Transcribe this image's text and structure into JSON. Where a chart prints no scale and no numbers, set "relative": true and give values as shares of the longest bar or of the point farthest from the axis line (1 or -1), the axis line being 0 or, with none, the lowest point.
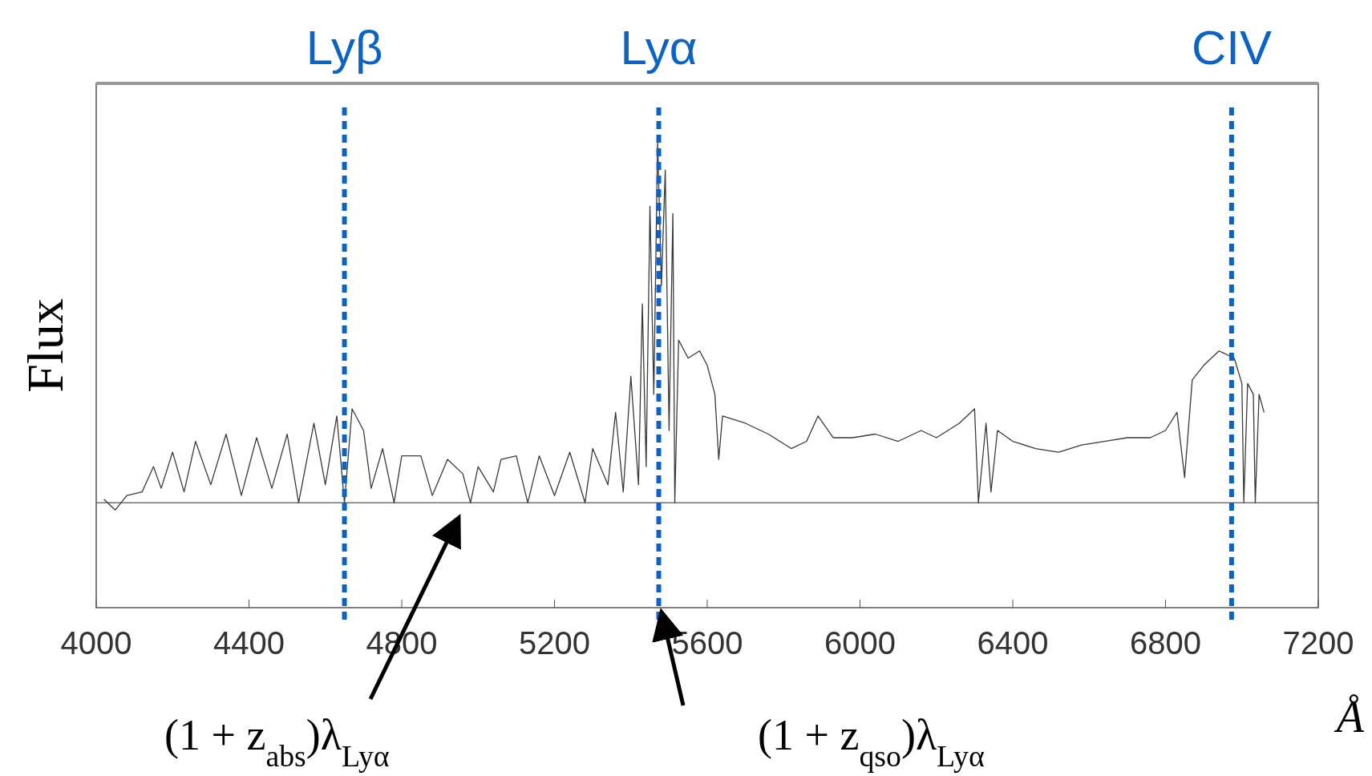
{
  "chart_data": {
    "type": "line",
    "relative": true,
    "xlabel": "Å",
    "ylabel": "Flux",
    "xlim": [
      4000,
      7200
    ],
    "xticks": [
      4000,
      4400,
      4800,
      5200,
      5600,
      6000,
      6400,
      6800,
      7200
    ],
    "grid": false,
    "line_style": "solid",
    "series": [
      {
        "color": "#3a3a3a",
        "x": [
          4020,
          4050,
          4080,
          4120,
          4150,
          4170,
          4200,
          4230,
          4260,
          4300,
          4340,
          4380,
          4420,
          4460,
          4500,
          4530,
          4570,
          4600,
          4630,
          4650,
          4670,
          4700,
          4720,
          4750,
          4780,
          4800,
          4850,
          4880,
          4920,
          4960,
          4980,
          5000,
          5040,
          5060,
          5100,
          5130,
          5160,
          5200,
          5240,
          5280,
          5300,
          5340,
          5360,
          5380,
          5400,
          5420,
          5430,
          5440,
          5450,
          5460,
          5470,
          5480,
          5490,
          5500,
          5510,
          5515,
          5525,
          5550,
          5580,
          5600,
          5620,
          5630,
          5640,
          5700,
          5760,
          5820,
          5860,
          5890,
          5930,
          5980,
          6040,
          6100,
          6160,
          6200,
          6260,
          6300,
          6310,
          6330,
          6343,
          6360,
          6400,
          6460,
          6520,
          6580,
          6640,
          6700,
          6760,
          6800,
          6830,
          6850,
          6870,
          6900,
          6940,
          6980,
          7000,
          7005,
          7015,
          7030,
          7035,
          7045,
          7058
        ],
        "values": [
          0.01,
          -0.02,
          0.02,
          0.03,
          0.1,
          0.04,
          0.14,
          0.03,
          0.17,
          0.05,
          0.19,
          0.02,
          0.18,
          0.04,
          0.19,
          0.0,
          0.22,
          0.05,
          0.24,
          0.0,
          0.26,
          0.2,
          0.04,
          0.15,
          0.0,
          0.13,
          0.13,
          0.02,
          0.12,
          0.08,
          0.0,
          0.1,
          0.03,
          0.12,
          0.13,
          0.0,
          0.13,
          0.02,
          0.14,
          0.0,
          0.15,
          0.05,
          0.25,
          0.03,
          0.35,
          0.05,
          0.55,
          0.1,
          0.82,
          0.3,
          1.0,
          0.6,
          0.92,
          0.2,
          0.8,
          0.0,
          0.45,
          0.4,
          0.42,
          0.38,
          0.3,
          0.12,
          0.24,
          0.22,
          0.19,
          0.15,
          0.17,
          0.24,
          0.18,
          0.18,
          0.19,
          0.17,
          0.2,
          0.18,
          0.22,
          0.26,
          0.0,
          0.22,
          0.03,
          0.2,
          0.17,
          0.15,
          0.14,
          0.16,
          0.17,
          0.18,
          0.18,
          0.2,
          0.25,
          0.07,
          0.34,
          0.38,
          0.42,
          0.4,
          0.33,
          0.0,
          0.33,
          0.3,
          0.0,
          0.3,
          0.25
        ]
      }
    ],
    "ref_lines": [
      {
        "axis": "x",
        "value": 4650,
        "label": "Lyβ",
        "color": "#0a63c5",
        "line_style": "dashed"
      },
      {
        "axis": "x",
        "value": 5473,
        "label": "Lyα",
        "color": "#0a63c5",
        "line_style": "dashed"
      },
      {
        "axis": "x",
        "value": 6973,
        "label": "CIV",
        "color": "#0a63c5",
        "line_style": "dashed"
      }
    ],
    "annotations": [
      "(1 + z$_{abs}$)λ$_{Lyα}$",
      "(1 + z$_{qso}$)λ$_{Lyα}$"
    ]
  }
}
